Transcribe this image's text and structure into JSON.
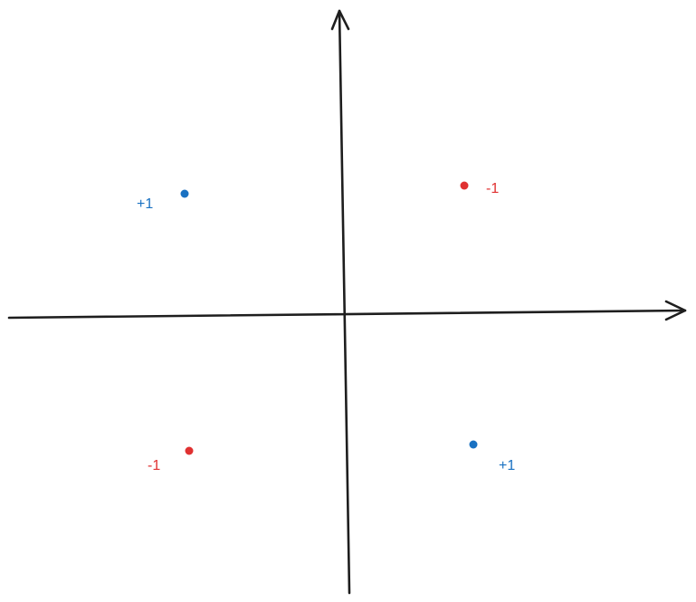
{
  "colors": {
    "axis": "#1e1e1e",
    "positive": "#1971c2",
    "negative": "#e03131",
    "background": "#ffffff"
  },
  "points": [
    {
      "quadrant": "top-left",
      "label": "+1",
      "class": "positive"
    },
    {
      "quadrant": "top-right",
      "label": "-1",
      "class": "negative"
    },
    {
      "quadrant": "bottom-left",
      "label": "-1",
      "class": "negative"
    },
    {
      "quadrant": "bottom-right",
      "label": "+1",
      "class": "positive"
    }
  ]
}
